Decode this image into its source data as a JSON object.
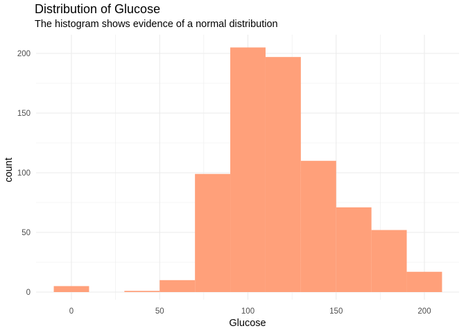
{
  "chart_data": {
    "type": "bar",
    "title": "Distribution of Glucose",
    "subtitle": "The histogram shows evidence of a normal distribution",
    "xlabel": "Glucose",
    "ylabel": "count",
    "bin_width": 20,
    "bins": [
      {
        "start": -10,
        "end": 10,
        "count": 5
      },
      {
        "start": 10,
        "end": 30,
        "count": 0
      },
      {
        "start": 30,
        "end": 50,
        "count": 1
      },
      {
        "start": 50,
        "end": 70,
        "count": 10
      },
      {
        "start": 70,
        "end": 90,
        "count": 99
      },
      {
        "start": 90,
        "end": 110,
        "count": 205
      },
      {
        "start": 110,
        "end": 130,
        "count": 197
      },
      {
        "start": 130,
        "end": 150,
        "count": 110
      },
      {
        "start": 150,
        "end": 170,
        "count": 71
      },
      {
        "start": 170,
        "end": 190,
        "count": 52
      },
      {
        "start": 190,
        "end": 210,
        "count": 17
      }
    ],
    "xlim": [
      -20,
      220
    ],
    "ylim": [
      0,
      215
    ],
    "x_ticks": [
      "0",
      "50",
      "100",
      "150",
      "200"
    ],
    "y_ticks": [
      "0",
      "50",
      "100",
      "150",
      "200"
    ],
    "bar_color": "#FFA07A",
    "grid": true
  }
}
